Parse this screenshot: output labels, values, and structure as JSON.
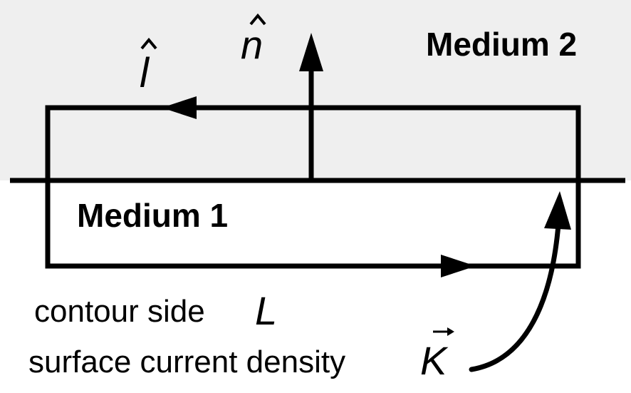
{
  "labels": {
    "medium_2": "Medium 2",
    "medium_1": "Medium 1",
    "normal_vector": "n",
    "tangent_vector": "l",
    "contour_side_text": "contour side",
    "contour_side_symbol": "L",
    "current_density_text": "surface current density",
    "current_density_symbol": "K"
  },
  "colors": {
    "medium_2_fill": "#efefef",
    "medium_1_fill": "#ffffff",
    "stroke": "#000000"
  }
}
